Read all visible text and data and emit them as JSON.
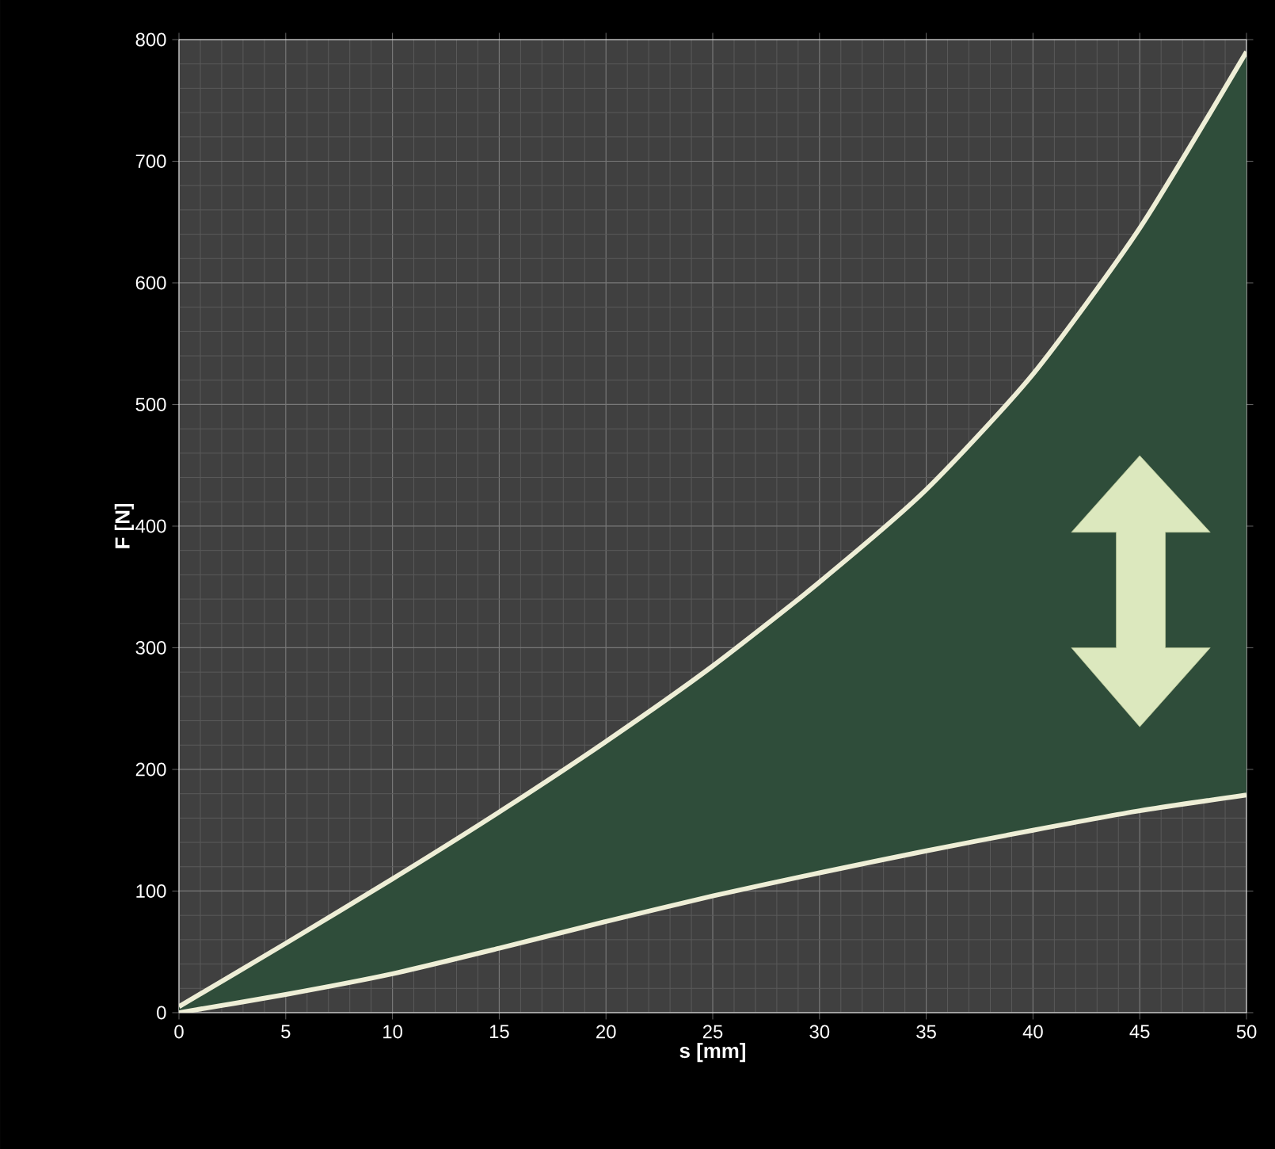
{
  "chart_data": {
    "type": "line",
    "xlabel": "s [mm]",
    "ylabel": "F [N]",
    "x": [
      0,
      5,
      10,
      15,
      20,
      25,
      30,
      35,
      40,
      45,
      50
    ],
    "series": [
      {
        "color": "#eeeed6",
        "values": [
          5,
          57,
          110,
          165,
          223,
          285,
          354,
          430,
          525,
          645,
          790
        ],
        "lower": [
          0,
          15,
          32,
          53,
          75,
          96,
          115,
          133,
          150,
          166,
          179
        ],
        "upper": [
          5,
          57,
          110,
          165,
          223,
          285,
          354,
          430,
          525,
          645,
          790
        ]
      },
      {
        "color": "#eeeed6",
        "values": [
          0,
          15,
          32,
          53,
          75,
          96,
          115,
          133,
          150,
          166,
          179
        ]
      }
    ],
    "xlim": [
      0,
      50
    ],
    "ylim": [
      0,
      800
    ],
    "xticks": [
      0,
      5,
      10,
      15,
      20,
      25,
      30,
      35,
      40,
      45,
      50
    ],
    "yticks": [
      0,
      100,
      200,
      300,
      400,
      500,
      600,
      700,
      800
    ],
    "grid": true,
    "marker": "none",
    "line_style": "solid"
  }
}
